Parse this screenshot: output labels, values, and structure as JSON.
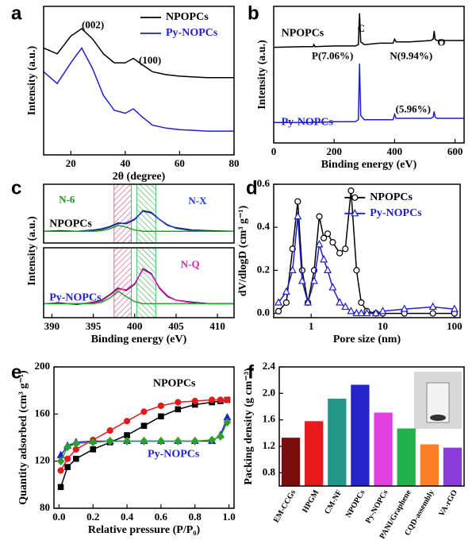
{
  "chart_data": [
    {
      "panel": "a",
      "type": "line",
      "xlabel": "2θ (degree)",
      "ylabel": "Intensity (a.u.)",
      "xlim": [
        10,
        80
      ],
      "xticks": [
        20,
        40,
        60,
        80
      ],
      "ylim": [
        0,
        100
      ],
      "legend": "upper right",
      "annotations": [
        "(002)",
        "(100)"
      ],
      "x": [
        10,
        15,
        20,
        24,
        28,
        32,
        36,
        40,
        43,
        46,
        50,
        55,
        60,
        70,
        80
      ],
      "series": [
        {
          "name": "NPOPCs",
          "color": "#000000",
          "values": [
            72,
            68,
            80,
            85,
            78,
            68,
            62,
            62,
            65,
            61,
            56,
            54,
            53,
            52,
            52
          ]
        },
        {
          "name": "Py-NOPCs",
          "color": "#1f1fd0",
          "values": [
            56,
            48,
            62,
            72,
            58,
            40,
            30,
            28,
            31,
            26,
            20,
            18,
            17,
            16,
            16
          ]
        }
      ]
    },
    {
      "panel": "b",
      "type": "line",
      "xlabel": "Binding energy  (eV)",
      "ylabel": "Intensity (a.u.)",
      "xlim": [
        0,
        630
      ],
      "xticks": [
        0,
        200,
        400,
        600
      ],
      "ylim": [
        0,
        100
      ],
      "annotations": [
        "C",
        "P(7.06%)",
        "N(9.94%)",
        "O",
        "(5.96%)"
      ],
      "x": [
        0,
        100,
        130,
        133,
        136,
        200,
        270,
        280,
        284,
        288,
        300,
        350,
        395,
        400,
        405,
        450,
        520,
        528,
        531,
        534,
        540,
        600,
        630
      ],
      "series": [
        {
          "name": "NPOPCs",
          "color": "#000000",
          "values": [
            70,
            70.5,
            70.5,
            72,
            70.5,
            71,
            71,
            72,
            95,
            74,
            72,
            73,
            73,
            76,
            74,
            74,
            75,
            76,
            82,
            76,
            75,
            75,
            75
          ]
        },
        {
          "name": "Py-NOPCs",
          "color": "#1f1fd0",
          "values": [
            15,
            15,
            15,
            15.5,
            15,
            15.5,
            15.5,
            17,
            58,
            20,
            17,
            17,
            17,
            21,
            18,
            18,
            18,
            19,
            23,
            19,
            18,
            18,
            18
          ]
        }
      ]
    },
    {
      "panel": "c",
      "type": "line",
      "xlim": [
        389,
        412
      ],
      "ylim": [
        0,
        100
      ],
      "annotations": [
        "N-6",
        "N-X"
      ],
      "x": [
        389,
        391,
        393,
        395,
        396,
        397,
        398,
        399,
        400,
        401,
        402,
        403,
        404,
        405,
        407,
        409,
        412
      ],
      "series": [
        {
          "name": "NPOPCs",
          "color": "#000000",
          "values": [
            20,
            21,
            20,
            22,
            24,
            28,
            34,
            33,
            40,
            55,
            52,
            40,
            30,
            26,
            22,
            21,
            20
          ]
        },
        {
          "color": "#1f3fd0",
          "values": [
            20,
            20,
            20,
            21,
            23,
            27,
            33,
            34,
            41,
            54,
            51,
            40,
            31,
            25,
            21,
            20,
            20
          ]
        },
        {
          "color": "#2aa02a",
          "values": [
            20,
            20,
            20,
            20,
            21,
            24,
            30,
            27,
            22,
            20,
            20,
            20,
            20,
            20,
            20,
            20,
            20
          ]
        }
      ]
    },
    {
      "type": "line",
      "xlabel": "Binding energy (eV)",
      "ylabel": "Intensity (a.u.)",
      "xlim": [
        389,
        412
      ],
      "xticks": [
        390,
        395,
        400,
        405,
        410
      ],
      "ylim": [
        0,
        100
      ],
      "annotations": [
        "N-Q"
      ],
      "x": [
        389,
        391,
        393,
        395,
        396,
        397,
        398,
        399,
        400,
        401,
        402,
        403,
        404,
        405,
        407,
        409,
        412
      ],
      "series": [
        {
          "name": "Py-NOPCs",
          "color": "#000000",
          "values": [
            20,
            21,
            19,
            22,
            25,
            33,
            42,
            39,
            48,
            70,
            63,
            42,
            30,
            25,
            22,
            20,
            20
          ]
        },
        {
          "color": "#e020c0",
          "values": [
            20,
            20,
            20,
            21,
            24,
            32,
            41,
            40,
            49,
            69,
            62,
            43,
            31,
            25,
            21,
            20,
            20
          ]
        },
        {
          "color": "#2aa02a",
          "values": [
            20,
            20,
            20,
            20,
            22,
            28,
            38,
            30,
            23,
            20,
            20,
            20,
            20,
            20,
            20,
            20,
            20
          ]
        }
      ]
    },
    {
      "panel": "d",
      "type": "line",
      "xscale": "log",
      "xlabel": "Pore size (nm)",
      "ylabel": "dV/dlogD (cm³ g⁻¹)",
      "xlim": [
        0.3,
        120
      ],
      "xticks": [
        1,
        10,
        100
      ],
      "ylim": [
        -0.02,
        0.6
      ],
      "yticks": [
        {
          "value": 0,
          "label": "0.0"
        },
        0.2,
        0.4,
        0.6
      ],
      "legend": "upper right",
      "x": [
        0.35,
        0.45,
        0.55,
        0.65,
        0.75,
        0.9,
        1.1,
        1.3,
        1.5,
        1.7,
        2.0,
        2.5,
        3.0,
        3.6,
        4.3,
        5,
        6,
        8,
        10,
        20,
        50,
        100
      ],
      "series": [
        {
          "name": "NPOPCs",
          "color": "#000000",
          "marker": "circle",
          "open": true,
          "values": [
            0.01,
            0.05,
            0.3,
            0.52,
            0.2,
            0.05,
            0.2,
            0.45,
            0.35,
            0.37,
            0.33,
            0.28,
            0.3,
            0.57,
            0.2,
            0.05,
            0.01,
            0,
            0,
            0,
            0,
            0
          ]
        },
        {
          "name": "Py-NOPCs",
          "color": "#1f1fd0",
          "marker": "triangle",
          "open": true,
          "values": [
            0.05,
            0.1,
            0.2,
            0.45,
            0.15,
            0.05,
            0.15,
            0.32,
            0.25,
            0.2,
            0.12,
            0.05,
            0.03,
            0.01,
            0,
            0,
            0,
            0,
            0.01,
            0.02,
            0.03,
            0.02
          ]
        }
      ]
    },
    {
      "panel": "e",
      "type": "line",
      "xlabel": "Relative pressure (P/P₀)",
      "ylabel": "Quantity adsorbed (cm³ g⁻¹)",
      "xlim": [
        -0.03,
        1.03
      ],
      "xticks": [
        {
          "value": 0,
          "label": "0.0"
        },
        0.2,
        0.4,
        0.6,
        0.8,
        {
          "value": 1,
          "label": "1.0"
        }
      ],
      "ylim": [
        80,
        200
      ],
      "yticks": [
        80,
        120,
        160,
        200
      ],
      "x": [
        0.01,
        0.05,
        0.1,
        0.2,
        0.3,
        0.4,
        0.5,
        0.6,
        0.7,
        0.8,
        0.9,
        0.95,
        0.99
      ],
      "series": [
        {
          "name": "NPOPCs",
          "color": "#000000",
          "marker": "square",
          "values": [
            98,
            115,
            122,
            130,
            136,
            142,
            150,
            158,
            164,
            168,
            170,
            171,
            172
          ]
        },
        {
          "name": "Py-NOPCs",
          "color": "#1f1fd0",
          "marker": "triangle",
          "values": [
            125,
            133,
            136,
            137,
            137,
            137,
            137,
            137,
            137,
            137,
            137,
            142,
            157
          ]
        },
        {
          "color": "#e41a1c",
          "marker": "circle",
          "values": [
            112,
            122,
            130,
            138,
            146,
            154,
            162,
            167,
            170,
            171,
            172,
            172,
            172
          ]
        },
        {
          "color": "#2ca02c",
          "marker": "diamond",
          "values": [
            120,
            132,
            135,
            136,
            137,
            137,
            137,
            137,
            137,
            137,
            138,
            141,
            153
          ]
        }
      ]
    },
    {
      "panel": "f",
      "type": "bar",
      "ylabel": "Packing density (g cm⁻³)",
      "ylim": [
        0.6,
        2.4
      ],
      "yticks": [
        0.8,
        1.2,
        1.6,
        {
          "value": 2,
          "label": "2.0"
        },
        2.4
      ],
      "categories": [
        "EM-CCGs",
        "HPGM",
        "CM-NF",
        "NPOPCs",
        "Py-NOPCs",
        "PANI/Graphene",
        "CQD-assembly",
        "VA-rGO"
      ],
      "values": [
        1.33,
        1.58,
        1.92,
        2.13,
        1.71,
        1.47,
        1.23,
        1.18
      ],
      "colors": [
        "#7b0c0c",
        "#e8191c",
        "#24958a",
        "#2424c8",
        "#e040e0",
        "#22b14c",
        "#ff7f27",
        "#8a3cd8"
      ]
    }
  ]
}
